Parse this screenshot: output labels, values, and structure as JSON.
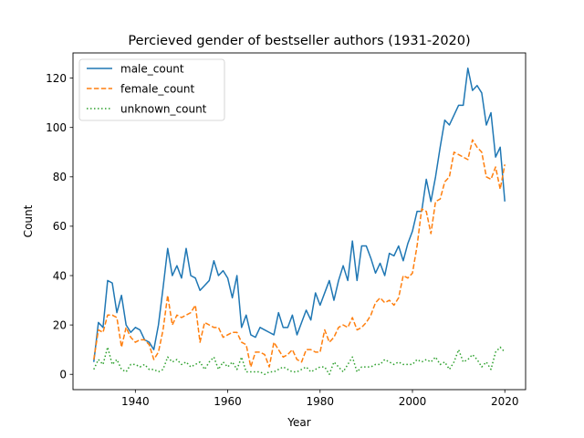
{
  "chart_data": {
    "type": "line",
    "title": "Percieved gender of bestseller authors (1931-2020)",
    "xlabel": "Year",
    "ylabel": "Count",
    "xlim": [
      1926.5,
      2024.5
    ],
    "ylim": [
      -6.2,
      130.2
    ],
    "xticks": [
      1940,
      1960,
      1980,
      2000,
      2020
    ],
    "yticks": [
      0,
      20,
      40,
      60,
      80,
      100,
      120
    ],
    "grid": false,
    "legend_position": "top-left",
    "x": [
      1931,
      1932,
      1933,
      1934,
      1935,
      1936,
      1937,
      1938,
      1939,
      1940,
      1941,
      1942,
      1943,
      1944,
      1945,
      1946,
      1947,
      1948,
      1949,
      1950,
      1951,
      1952,
      1953,
      1954,
      1955,
      1956,
      1957,
      1958,
      1959,
      1960,
      1961,
      1962,
      1963,
      1964,
      1965,
      1966,
      1967,
      1968,
      1969,
      1970,
      1971,
      1972,
      1973,
      1974,
      1975,
      1976,
      1977,
      1978,
      1979,
      1980,
      1981,
      1982,
      1983,
      1984,
      1985,
      1986,
      1987,
      1988,
      1989,
      1990,
      1991,
      1992,
      1993,
      1994,
      1995,
      1996,
      1997,
      1998,
      1999,
      2000,
      2001,
      2002,
      2003,
      2004,
      2005,
      2006,
      2007,
      2008,
      2009,
      2010,
      2011,
      2012,
      2013,
      2014,
      2015,
      2016,
      2017,
      2018,
      2019,
      2020
    ],
    "series": [
      {
        "name": "male_count",
        "color": "#1f77b4",
        "dash": "solid",
        "values": [
          5,
          21,
          19,
          38,
          37,
          25,
          32,
          20,
          17,
          19,
          18,
          14,
          13,
          10,
          20,
          35,
          51,
          40,
          44,
          39,
          51,
          40,
          39,
          34,
          36,
          38,
          46,
          40,
          42,
          39,
          31,
          40,
          19,
          24,
          16,
          15,
          19,
          18,
          17,
          16,
          25,
          19,
          19,
          24,
          16,
          21,
          26,
          22,
          33,
          28,
          33,
          38,
          30,
          38,
          44,
          38,
          54,
          38,
          52,
          52,
          47,
          41,
          45,
          40,
          49,
          48,
          52,
          46,
          53,
          58,
          66,
          66,
          79,
          70,
          80,
          92,
          103,
          101,
          105,
          109,
          109,
          124,
          115,
          117,
          114,
          101,
          106,
          88,
          92,
          70
        ]
      },
      {
        "name": "female_count",
        "color": "#ff7f0e",
        "dash": "dashed",
        "values": [
          6,
          18,
          17,
          24,
          24,
          23,
          11,
          19,
          15,
          13,
          14,
          14,
          12,
          6,
          9,
          18,
          32,
          20,
          24,
          23,
          24,
          25,
          28,
          13,
          21,
          20,
          19,
          19,
          15,
          16,
          17,
          17,
          13,
          12,
          3,
          9,
          9,
          8,
          3,
          13,
          10,
          7,
          8,
          10,
          6,
          5,
          10,
          10,
          9,
          9,
          18,
          13,
          15,
          19,
          20,
          19,
          23,
          18,
          19,
          21,
          24,
          29,
          31,
          29,
          30,
          28,
          31,
          40,
          39,
          41,
          52,
          67,
          66,
          57,
          70,
          71,
          78,
          80,
          90,
          89,
          88,
          87,
          95,
          92,
          90,
          80,
          79,
          84,
          75,
          85
        ]
      },
      {
        "name": "unknown_count",
        "color": "#2ca02c",
        "dash": "dotted",
        "values": [
          2,
          6,
          4,
          11,
          4,
          6,
          2,
          1,
          4,
          4,
          3,
          4,
          2,
          2,
          1,
          2,
          7,
          5,
          6,
          4,
          5,
          3,
          4,
          5,
          2,
          5,
          7,
          2,
          5,
          3,
          5,
          2,
          7,
          1,
          1,
          1,
          1,
          0,
          1,
          1,
          2,
          3,
          2,
          1,
          1,
          2,
          3,
          1,
          2,
          3,
          3,
          0,
          5,
          3,
          1,
          4,
          7,
          1,
          3,
          3,
          3,
          4,
          4,
          6,
          5,
          4,
          5,
          4,
          4,
          4,
          6,
          5,
          6,
          5,
          7,
          4,
          5,
          2,
          5,
          10,
          5,
          6,
          8,
          6,
          3,
          5,
          2,
          9,
          11,
          9
        ]
      }
    ]
  }
}
